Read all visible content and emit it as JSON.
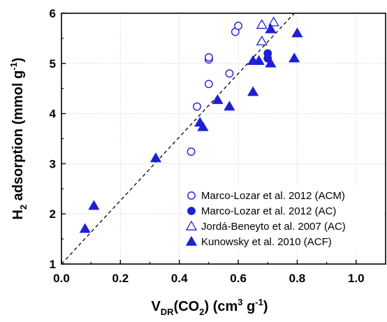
{
  "chart_data": {
    "type": "scatter",
    "xlabel": {
      "parts": [
        {
          "text": "V",
          "shift": "base"
        },
        {
          "text": "DR",
          "shift": "sub"
        },
        {
          "text": "(CO",
          "shift": "base"
        },
        {
          "text": "2",
          "shift": "sub"
        },
        {
          "text": ") (cm",
          "shift": "base"
        },
        {
          "text": "3",
          "shift": "sup"
        },
        {
          "text": " g",
          "shift": "base"
        },
        {
          "text": "-1",
          "shift": "sup"
        },
        {
          "text": ")",
          "shift": "base"
        }
      ]
    },
    "ylabel": {
      "parts": [
        {
          "text": "H",
          "shift": "base"
        },
        {
          "text": "2",
          "shift": "sub"
        },
        {
          "text": " adsorption (mmol g",
          "shift": "base"
        },
        {
          "text": "-1",
          "shift": "sup"
        },
        {
          "text": ")",
          "shift": "base"
        }
      ]
    },
    "xlim": [
      0.0,
      1.1
    ],
    "ylim": [
      1,
      6
    ],
    "xticks": [
      "0.0",
      "0.2",
      "0.4",
      "0.6",
      "0.8",
      "1.0"
    ],
    "yticks": [
      "1",
      "2",
      "3",
      "4",
      "5",
      "6"
    ],
    "grid": true,
    "legend_position": "bottom-right",
    "trend_line": {
      "style": "dashed",
      "x": [
        0.0,
        0.79
      ],
      "y": [
        1.0,
        6.0
      ]
    },
    "series": [
      {
        "name": "Marco-Lozar et al. 2012 (ACM)",
        "marker": "circle-open",
        "color": "#1f1fd6",
        "points": [
          [
            0.44,
            3.24
          ],
          [
            0.46,
            4.14
          ],
          [
            0.5,
            4.59
          ],
          [
            0.5,
            5.08
          ],
          [
            0.5,
            5.12
          ],
          [
            0.57,
            4.8
          ],
          [
            0.59,
            5.63
          ],
          [
            0.6,
            5.75
          ]
        ]
      },
      {
        "name": "Marco-Lozar et al. 2012 (AC)",
        "marker": "circle-filled",
        "color": "#1f1fd6",
        "points": [
          [
            0.7,
            5.1
          ],
          [
            0.7,
            5.2
          ]
        ]
      },
      {
        "name": "Jordá-Beneyto et al. 2007 (AC)",
        "marker": "triangle-open",
        "color": "#1f1fd6",
        "points": [
          [
            0.68,
            5.44
          ],
          [
            0.68,
            5.77
          ],
          [
            0.72,
            5.82
          ]
        ]
      },
      {
        "name": "Kunowsky et al. 2010 (ACF)",
        "marker": "triangle-filled",
        "color": "#1f1fd6",
        "points": [
          [
            0.08,
            1.7
          ],
          [
            0.11,
            2.16
          ],
          [
            0.32,
            3.11
          ],
          [
            0.47,
            3.82
          ],
          [
            0.48,
            3.73
          ],
          [
            0.53,
            4.27
          ],
          [
            0.57,
            4.14
          ],
          [
            0.65,
            4.43
          ],
          [
            0.65,
            5.05
          ],
          [
            0.67,
            5.05
          ],
          [
            0.71,
            5.0
          ],
          [
            0.71,
            5.68
          ],
          [
            0.79,
            5.1
          ],
          [
            0.8,
            5.6
          ]
        ]
      }
    ]
  }
}
